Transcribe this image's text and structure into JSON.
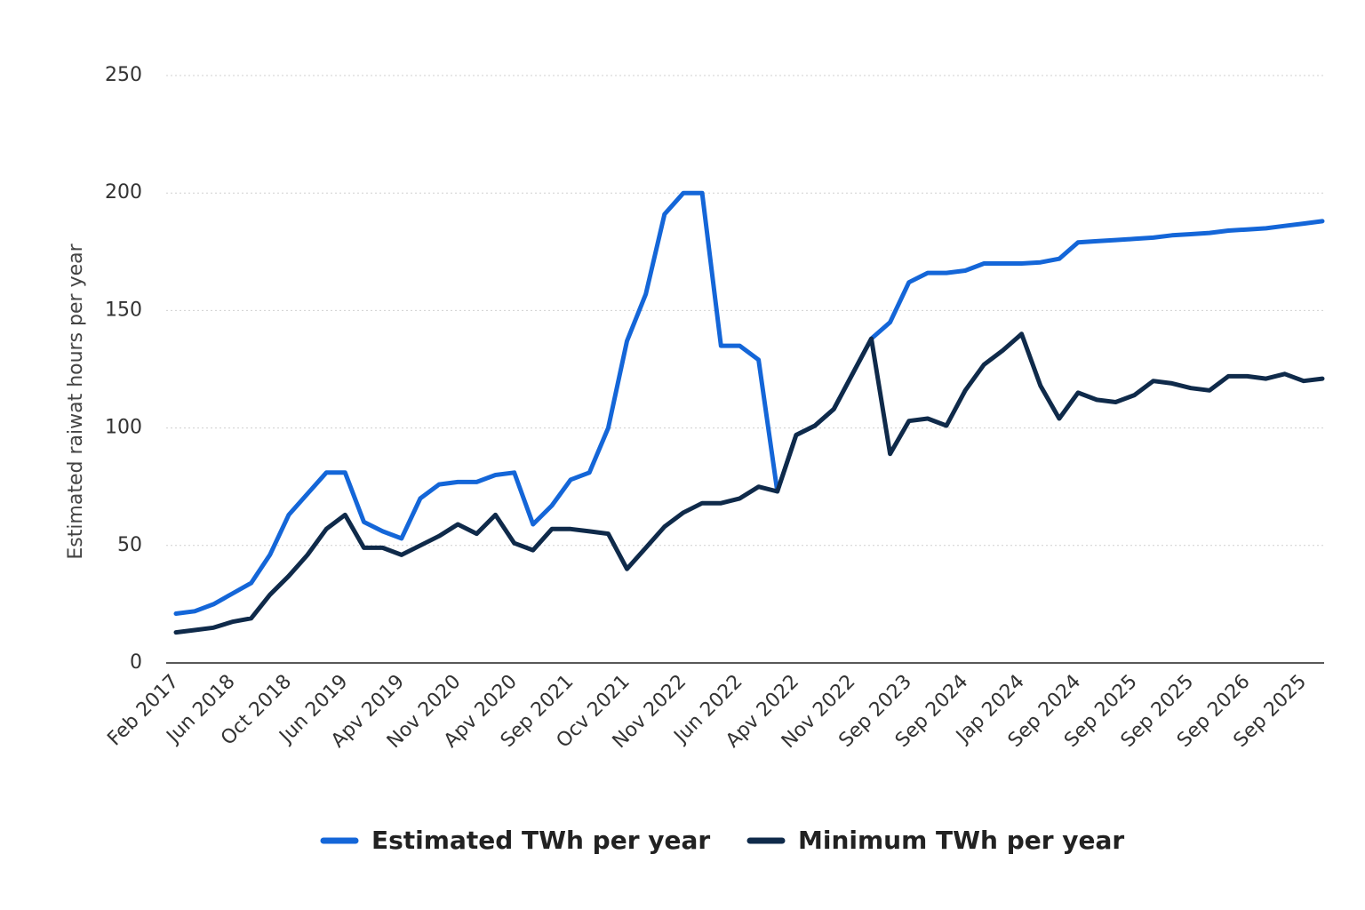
{
  "chart_data": {
    "type": "line",
    "y_label": "Estimated raiwat hours per year",
    "categories": [
      "Feb 2017",
      null,
      null,
      "Jun 2018",
      null,
      null,
      "Oct 2018",
      null,
      null,
      "Jun 2019",
      null,
      null,
      "Apv 2019",
      null,
      null,
      "Nov 2020",
      null,
      null,
      "Apv 2020",
      null,
      null,
      "Sep 2021",
      null,
      null,
      "Ocv 2021",
      null,
      null,
      "Nov 2022",
      null,
      null,
      "Jun 2022",
      null,
      null,
      "Apv 2022",
      null,
      null,
      "Nov 2022",
      null,
      null,
      "Sep 2023",
      null,
      null,
      "Sep 2024",
      null,
      null,
      "Jap 2024",
      null,
      null,
      "Sep 2024",
      null,
      null,
      "Sep 2025",
      null,
      null,
      "Sep 2025",
      null,
      null,
      "Sep 2026",
      null,
      null,
      "Sep 2025",
      null
    ],
    "series": [
      {
        "name": "Estimated TWh per year",
        "color": "#1466d8",
        "values": [
          21,
          22,
          25,
          29.5,
          34,
          46,
          63,
          72,
          81,
          81,
          60,
          56,
          53,
          70,
          76,
          77,
          77,
          80,
          81,
          59,
          67,
          78,
          81,
          100,
          137,
          157,
          191,
          200,
          200,
          135,
          135,
          129,
          73,
          97,
          101,
          108,
          123,
          138,
          145,
          162,
          166,
          166,
          167,
          170,
          170,
          170,
          170.5,
          172,
          179,
          179.5,
          180,
          180.5,
          181,
          182,
          182.5,
          183,
          184,
          184.5,
          185,
          186,
          187,
          188
        ]
      },
      {
        "name": "Minimum TWh per year",
        "color": "#0f2a4a",
        "values": [
          13,
          14,
          15,
          17.5,
          19,
          29,
          37,
          46,
          57,
          63,
          49,
          49,
          46,
          50,
          54,
          59,
          55,
          63,
          51,
          48,
          57,
          57,
          56,
          55,
          40,
          49,
          58,
          64,
          68,
          68,
          70,
          75,
          73,
          97,
          101,
          108,
          123,
          138,
          89,
          103,
          104,
          101,
          116,
          127,
          133,
          140,
          118,
          104,
          115,
          112,
          111,
          114,
          120,
          119,
          117,
          116,
          122,
          122,
          121,
          123,
          120,
          121
        ]
      }
    ],
    "ylim": [
      0,
      250
    ],
    "yticks": [
      0,
      50,
      100,
      150,
      200,
      250
    ],
    "grid": true,
    "legend": "bottom"
  }
}
